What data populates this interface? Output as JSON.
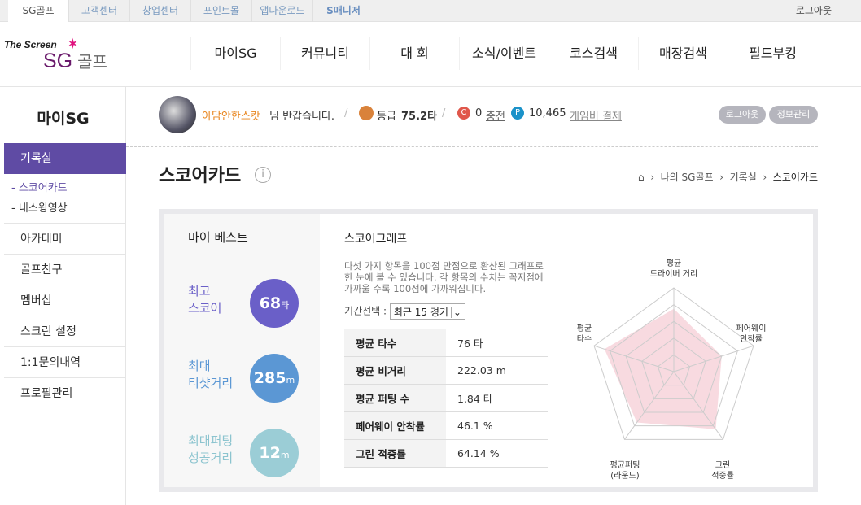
{
  "topbar": {
    "tabs": [
      "SG골프",
      "고객센터",
      "창업센터",
      "포인트몰",
      "앱다운로드",
      "S매니저"
    ],
    "logout": "로그아웃"
  },
  "logo": {
    "line1": "The Screen",
    "line2": "SG",
    "line3": "골프"
  },
  "gnav": [
    "마이SG",
    "커뮤니티",
    "대 회",
    "소식/이벤트",
    "코스검색",
    "매장검색",
    "필드부킹"
  ],
  "sidebar": {
    "title": "마이SG",
    "active": "기록실",
    "subitems": [
      "스코어카드",
      "내스윙영상"
    ],
    "items": [
      "아카데미",
      "골프친구",
      "멤버십",
      "스크린 설정",
      "1:1문의내역",
      "프로필관리"
    ]
  },
  "user": {
    "name": "아담안한스캇",
    "greeting": "님 반갑습니다.",
    "grade_label": "등급",
    "grade": "75.2타",
    "coin": "0",
    "charge": "충전",
    "points": "10,465",
    "pay": "게임비 결제",
    "logout": "로그아웃",
    "profile": "정보관리"
  },
  "page": {
    "title": "스코어카드",
    "breadcrumb": [
      "나의 SG골프",
      "기록실",
      "스코어카드"
    ]
  },
  "best": {
    "title": "마이 베스트",
    "items": [
      {
        "label1": "최고",
        "label2": "스코어",
        "value": "68",
        "unit": "타",
        "color": "#6a5fc8"
      },
      {
        "label1": "최대",
        "label2": "티샷거리",
        "value": "285",
        "unit": "m",
        "color": "#5b97d4"
      },
      {
        "label1": "최대퍼팅",
        "label2": "성공거리",
        "value": "12",
        "unit": "m",
        "color": "#9bcdd6"
      }
    ]
  },
  "graph": {
    "title": "스코어그래프",
    "desc": "다섯 가지 항목을 100점 만점으로 환산된 그래프로 한 눈에 볼 수 있습니다. 각 항목의 수치는 꼭지점에 가까울 수록 100점에 가까워집니다.",
    "period_label": "기간선택 :",
    "period_value": "최근 15 경기",
    "stats": [
      {
        "k": "평균 타수",
        "v": "76 타"
      },
      {
        "k": "평균 비거리",
        "v": "222.03 m"
      },
      {
        "k": "평균 퍼팅 수",
        "v": "1.84 타"
      },
      {
        "k": "페어웨이 안착률",
        "v": "46.1 %"
      },
      {
        "k": "그린 적중률",
        "v": "64.14 %"
      }
    ]
  },
  "chart_data": {
    "type": "radar",
    "axes": [
      [
        "평균",
        "드라이버 거리"
      ],
      [
        "페어웨이",
        "안착률"
      ],
      [
        "그린",
        "적중률"
      ],
      [
        "평균퍼팅",
        "(라운드)"
      ],
      [
        "평균",
        "타수"
      ]
    ],
    "values": [
      75,
      60,
      85,
      75,
      87
    ],
    "max": 100,
    "levels": 5,
    "fill_color": "#f4c6d0"
  }
}
